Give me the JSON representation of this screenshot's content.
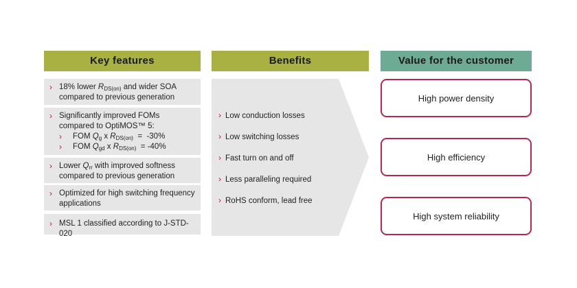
{
  "headers": {
    "key_features": "Key features",
    "benefits": "Benefits",
    "value": "Value for the customer"
  },
  "key_features": {
    "f1_pre": "18% lower ",
    "f1_r": "R",
    "f1_sub": "DS(on)",
    "f1_post": " and wider SOA compared to previous generation",
    "f2_text": "Significantly improved FOMs compared to OptiMOS™ 5:",
    "f2_s1_a": "FOM ",
    "f2_s1_q": "Q",
    "f2_s1_qsub": "g",
    "f2_s1_x": " x ",
    "f2_s1_r": "R",
    "f2_s1_rsub": "DS(on)",
    "f2_s1_val": "  =  -30%",
    "f2_s2_a": "FOM ",
    "f2_s2_q": "Q",
    "f2_s2_qsub": "gd",
    "f2_s2_x": " x ",
    "f2_s2_r": "R",
    "f2_s2_rsub": "DS(on)",
    "f2_s2_val": "  = -40%",
    "f3_pre": "Lower ",
    "f3_q": "Q",
    "f3_sub": "rr",
    "f3_post": " with improved softness compared to previous generation",
    "f4": "Optimized for high switching frequency applications",
    "f5": "MSL 1 classified according to J-STD-020"
  },
  "benefits": [
    "Low conduction losses",
    "Low switching losses",
    "Fast turn on and off",
    "Less paralleling required",
    "RoHS conform, lead free"
  ],
  "values": [
    "High power density",
    "High efficiency",
    "High system reliability"
  ],
  "chevron": "›",
  "colors": {
    "olive": "#a9b142",
    "teal": "#6dab94",
    "grey": "#e6e6e6",
    "accent": "#c8102e",
    "border": "#b5284b"
  }
}
